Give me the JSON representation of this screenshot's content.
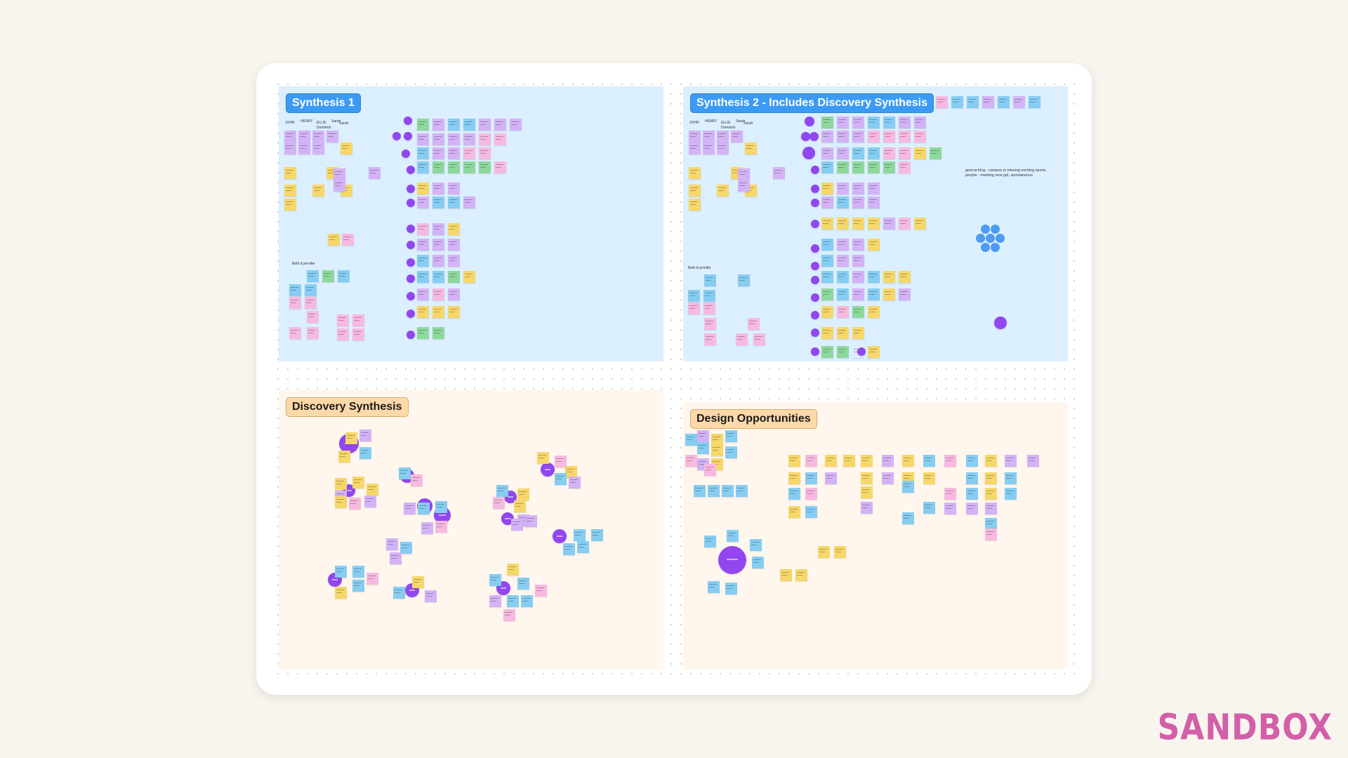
{
  "sections": [
    {
      "title": "Synthesis 1",
      "names": [
        "JOHN",
        "HENRY",
        "ELLIE",
        "Dominick",
        "Sarah",
        "Sarah",
        "Beth & jennifer"
      ]
    },
    {
      "title": "Synthesis 2 - Includes Discovery Synthesis",
      "names": [
        "JOHN",
        "HENRY",
        "ELLIE",
        "Dominick",
        "Sarah",
        "Sarah",
        "Beth & jennifer"
      ],
      "annotation": "geocaching - campus is missing exciting sports people - meeting new ppl, spontaneous"
    },
    {
      "title": "Discovery Synthesis"
    },
    {
      "title": "Design Opportunities"
    }
  ],
  "brand": "SANDBOX",
  "colors": {
    "background": "#f8f5ef",
    "blue_section": "#dcefff",
    "cream_section": "#fff7ee",
    "cluster_node": "#9146f0",
    "brand": "#d35fa8"
  }
}
